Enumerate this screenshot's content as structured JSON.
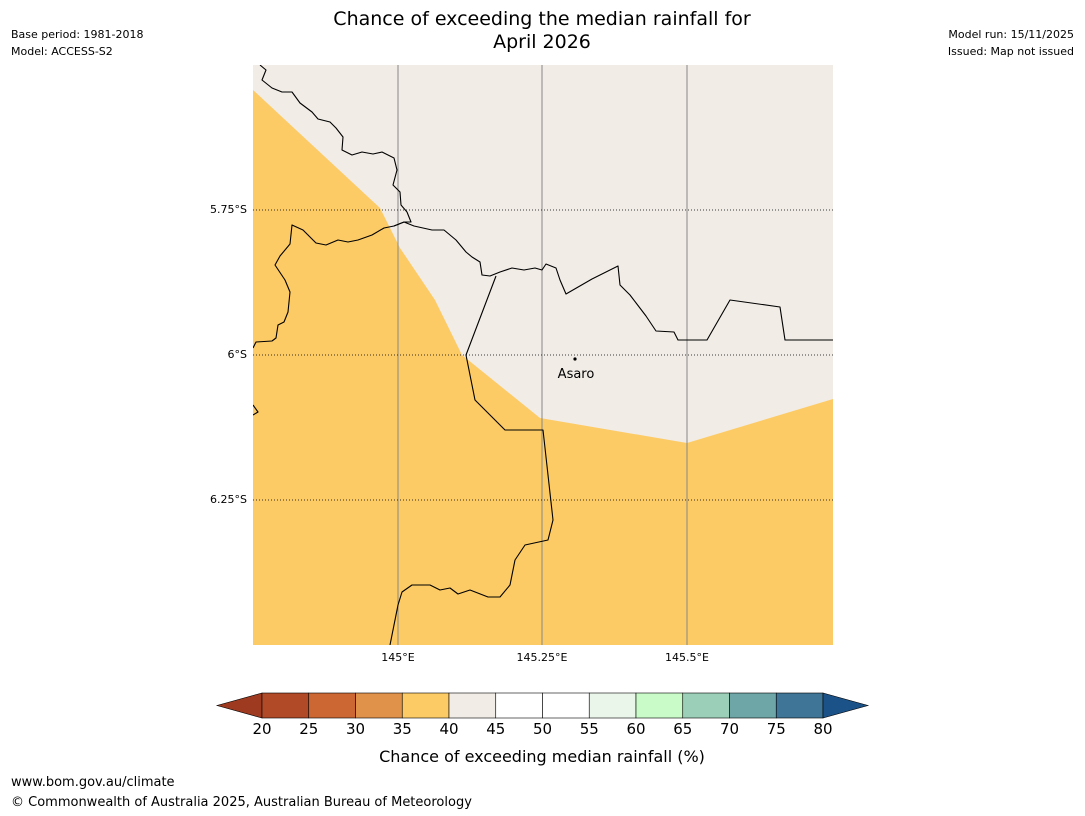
{
  "header": {
    "title_line1": "Chance of exceeding the median rainfall for",
    "title_line2": "April 2026",
    "base_period": "Base period: 1981-2018",
    "model": "Model: ACCESS-S2",
    "model_run": "Model run: 15/11/2025",
    "issued": "Issued: Map not issued"
  },
  "map": {
    "lat_labels": [
      "5.75°S",
      "6°S",
      "6.25°S"
    ],
    "lon_labels": [
      "145°E",
      "145.25°E",
      "145.5°E"
    ],
    "place_label": "Asaro",
    "colors": {
      "below_category": "#fdcb66",
      "neutral_category": "#f1ece6",
      "boundary": "#000000",
      "gridline": "#888888"
    }
  },
  "colorbar": {
    "tick_labels": [
      "20",
      "25",
      "30",
      "35",
      "40",
      "45",
      "50",
      "55",
      "60",
      "65",
      "70",
      "75",
      "80"
    ],
    "label": "Chance of exceeding median rainfall (%)",
    "under_color": "#9e3a1f",
    "over_color": "#1b5287",
    "colors": [
      "#b04a27",
      "#cc6633",
      "#e0924a",
      "#fdcb66",
      "#f1ece6",
      "#ffffff",
      "#ffffff",
      "#eaf6ea",
      "#c8fbc8",
      "#9ccfb8",
      "#6ea5a6",
      "#3f7698"
    ]
  },
  "footer": {
    "url": "www.bom.gov.au/climate",
    "copyright": "© Commonwealth of Australia 2025, Australian Bureau of Meteorology"
  }
}
